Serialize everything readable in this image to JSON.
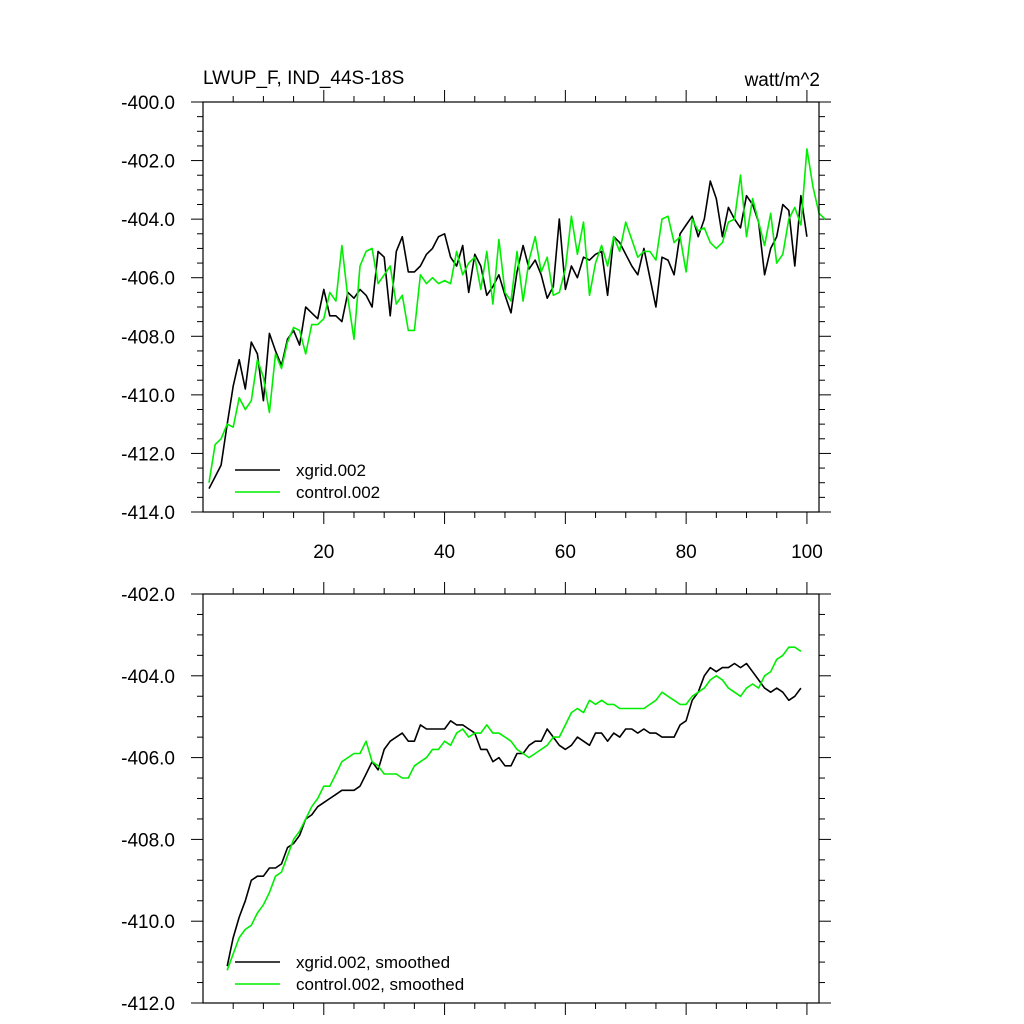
{
  "header": {
    "title": "LWUP_F, IND_44S-18S",
    "units": "watt/m^2"
  },
  "colors": {
    "series_primary": "#000000",
    "series_secondary": "#00ee00",
    "axes": "#000000",
    "background": "#ffffff"
  },
  "chart_data": [
    {
      "type": "line",
      "title": "LWUP_F, IND_44S-18S",
      "units": "watt/m^2",
      "xlim": [
        0,
        102
      ],
      "ylim": [
        -414,
        -400
      ],
      "x_ticks": [
        20,
        40,
        60,
        80,
        100
      ],
      "x_tick_labels": [
        "20",
        "40",
        "60",
        "80",
        "100"
      ],
      "y_ticks": [
        -400,
        -402,
        -404,
        -406,
        -408,
        -410,
        -412,
        -414
      ],
      "y_tick_labels": [
        "-400.0",
        "-402.0",
        "-404.0",
        "-406.0",
        "-408.0",
        "-410.0",
        "-412.0",
        "-414.0"
      ],
      "legend_position": "bottom-left",
      "x_start": 1,
      "series": [
        {
          "name": "xgrid.002",
          "color": "#000000",
          "values": [
            -413.2,
            -412.8,
            -412.4,
            -411.0,
            -409.7,
            -408.8,
            -409.8,
            -408.2,
            -408.6,
            -410.2,
            -407.9,
            -408.5,
            -409.0,
            -408.1,
            -407.8,
            -408.3,
            -407.0,
            -407.2,
            -407.4,
            -406.4,
            -407.3,
            -407.3,
            -407.5,
            -406.5,
            -406.7,
            -406.4,
            -406.6,
            -407.0,
            -405.1,
            -405.3,
            -407.3,
            -405.1,
            -404.6,
            -405.8,
            -405.8,
            -405.6,
            -405.2,
            -405.0,
            -404.6,
            -404.5,
            -405.3,
            -405.6,
            -404.9,
            -406.5,
            -405.2,
            -405.6,
            -406.6,
            -406.3,
            -405.9,
            -406.6,
            -407.2,
            -405.8,
            -404.9,
            -405.7,
            -405.4,
            -405.9,
            -406.7,
            -406.3,
            -404.0,
            -406.4,
            -405.6,
            -406.0,
            -405.3,
            -405.4,
            -405.2,
            -405.1,
            -406.6,
            -404.6,
            -404.8,
            -405.2,
            -405.6,
            -405.9,
            -405.0,
            -406.0,
            -407.0,
            -405.3,
            -405.4,
            -405.9,
            -404.5,
            -404.2,
            -403.9,
            -404.6,
            -404.0,
            -402.7,
            -403.3,
            -404.6,
            -403.6,
            -404.0,
            -404.3,
            -403.2,
            -403.5,
            -404.1,
            -405.9,
            -405.0,
            -404.6,
            -403.5,
            -403.7,
            -405.6,
            -403.2,
            -404.6
          ]
        },
        {
          "name": "control.002",
          "color": "#00ee00",
          "values": [
            -413.0,
            -411.7,
            -411.5,
            -411.0,
            -411.1,
            -410.1,
            -410.5,
            -410.2,
            -408.8,
            -409.4,
            -410.6,
            -408.6,
            -409.1,
            -408.2,
            -407.7,
            -407.8,
            -408.6,
            -407.6,
            -407.6,
            -407.4,
            -406.5,
            -406.8,
            -404.9,
            -406.7,
            -408.1,
            -405.6,
            -405.1,
            -405.0,
            -406.2,
            -405.9,
            -405.6,
            -406.9,
            -406.6,
            -407.8,
            -407.8,
            -405.9,
            -406.2,
            -406.0,
            -406.2,
            -406.1,
            -406.2,
            -405.1,
            -405.9,
            -405.5,
            -405.3,
            -406.4,
            -405.1,
            -406.9,
            -404.7,
            -406.5,
            -406.8,
            -405.1,
            -406.8,
            -405.4,
            -404.6,
            -405.8,
            -405.3,
            -406.6,
            -406.5,
            -405.7,
            -403.9,
            -405.2,
            -404.1,
            -406.6,
            -405.5,
            -404.9,
            -405.6,
            -404.6,
            -405.1,
            -404.1,
            -404.7,
            -405.3,
            -405.1,
            -405.1,
            -405.4,
            -404.0,
            -403.9,
            -404.8,
            -404.6,
            -405.8,
            -404.0,
            -404.4,
            -404.3,
            -404.8,
            -405.0,
            -404.8,
            -404.1,
            -404.0,
            -402.5,
            -404.6,
            -403.3,
            -404.1,
            -404.9,
            -403.8,
            -405.5,
            -405.2,
            -404.0,
            -403.6,
            -404.2,
            -401.6,
            -402.9,
            -403.8,
            -404.0
          ]
        }
      ]
    },
    {
      "type": "line",
      "title": "",
      "xlim": [
        0,
        102
      ],
      "ylim": [
        -412,
        -402
      ],
      "x_ticks": [
        20,
        40,
        60,
        80,
        100
      ],
      "y_ticks": [
        -402,
        -404,
        -406,
        -408,
        -410,
        -412
      ],
      "y_tick_labels": [
        "-402.0",
        "-404.0",
        "-406.0",
        "-408.0",
        "-410.0",
        "-412.0"
      ],
      "legend_position": "bottom-left",
      "x_start": 4,
      "series": [
        {
          "name": "xgrid.002, smoothed",
          "color": "#000000",
          "values": [
            -411.1,
            -410.4,
            -409.9,
            -409.5,
            -409.0,
            -408.9,
            -408.9,
            -408.7,
            -408.7,
            -408.6,
            -408.2,
            -408.1,
            -407.9,
            -407.5,
            -407.4,
            -407.2,
            -407.1,
            -407.0,
            -406.9,
            -406.8,
            -406.8,
            -406.8,
            -406.7,
            -406.4,
            -406.1,
            -406.3,
            -405.8,
            -405.6,
            -405.5,
            -405.4,
            -405.6,
            -405.6,
            -405.2,
            -405.3,
            -405.3,
            -405.3,
            -405.3,
            -405.1,
            -405.2,
            -405.2,
            -405.3,
            -405.4,
            -405.8,
            -405.8,
            -406.1,
            -406.0,
            -406.2,
            -406.2,
            -405.9,
            -405.9,
            -405.7,
            -405.6,
            -405.6,
            -405.3,
            -405.5,
            -405.7,
            -405.8,
            -405.7,
            -405.5,
            -405.6,
            -405.7,
            -405.4,
            -405.4,
            -405.6,
            -405.4,
            -405.5,
            -405.3,
            -405.3,
            -405.4,
            -405.3,
            -405.4,
            -405.4,
            -405.5,
            -405.5,
            -405.5,
            -405.2,
            -405.1,
            -404.6,
            -404.4,
            -404.0,
            -403.8,
            -403.9,
            -403.8,
            -403.8,
            -403.7,
            -403.8,
            -403.7,
            -403.9,
            -404.1,
            -404.3,
            -404.4,
            -404.3,
            -404.4,
            -404.6,
            -404.5,
            -404.3
          ]
        },
        {
          "name": "control.002, smoothed",
          "color": "#00ee00",
          "values": [
            -411.2,
            -410.8,
            -410.4,
            -410.2,
            -410.1,
            -409.8,
            -409.6,
            -409.3,
            -408.9,
            -408.8,
            -408.4,
            -408.0,
            -407.8,
            -407.5,
            -407.2,
            -407.0,
            -406.7,
            -406.7,
            -406.4,
            -406.1,
            -406.0,
            -405.9,
            -405.9,
            -405.6,
            -406.1,
            -406.2,
            -406.4,
            -406.4,
            -406.4,
            -406.5,
            -406.5,
            -406.2,
            -406.1,
            -406.0,
            -405.8,
            -405.8,
            -405.6,
            -405.7,
            -405.4,
            -405.3,
            -405.5,
            -405.4,
            -405.4,
            -405.2,
            -405.4,
            -405.4,
            -405.5,
            -405.6,
            -405.8,
            -405.9,
            -406.0,
            -405.9,
            -405.8,
            -405.7,
            -405.5,
            -405.5,
            -405.2,
            -404.9,
            -404.8,
            -404.9,
            -404.6,
            -404.7,
            -404.6,
            -404.7,
            -404.7,
            -404.8,
            -404.8,
            -404.8,
            -404.8,
            -404.8,
            -404.7,
            -404.6,
            -404.4,
            -404.5,
            -404.6,
            -404.7,
            -404.7,
            -404.5,
            -404.4,
            -404.3,
            -404.1,
            -404.0,
            -404.1,
            -404.3,
            -404.4,
            -404.5,
            -404.3,
            -404.2,
            -404.3,
            -404.0,
            -403.9,
            -403.6,
            -403.5,
            -403.3,
            -403.3,
            -403.4
          ]
        }
      ]
    }
  ]
}
